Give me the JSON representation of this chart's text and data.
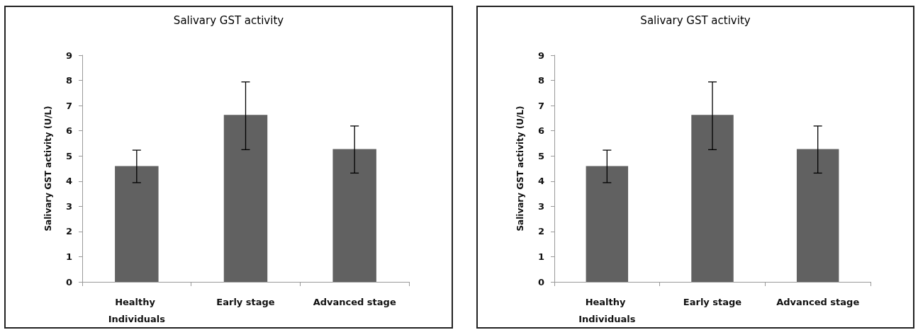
{
  "chart_data": [
    {
      "type": "bar",
      "title": "Salivary GST activity",
      "ylabel": "Salivary GST activity (U/L)",
      "categories": [
        "Healthy Individuals",
        "Early stage",
        "Advanced stage"
      ],
      "values": [
        4.6,
        6.63,
        5.27
      ],
      "color": "#616161",
      "errors": [
        [
          3.94,
          5.23
        ],
        [
          5.25,
          7.94
        ],
        [
          4.32,
          6.19
        ]
      ],
      "ylim": [
        0,
        9
      ],
      "yticks": [
        0,
        1,
        2,
        3,
        4,
        5,
        6,
        7,
        8,
        9
      ]
    },
    {
      "type": "bar",
      "title": "Salivary GST activity",
      "ylabel": "Salivary GST activity (U/L)",
      "categories": [
        "Healthy Individuals",
        "Early stage",
        "Advanced stage"
      ],
      "values": [
        4.6,
        6.63,
        5.27
      ],
      "color": "#616161",
      "errors": [
        [
          3.94,
          5.23
        ],
        [
          5.25,
          7.94
        ],
        [
          4.32,
          6.19
        ]
      ],
      "ylim": [
        0,
        9
      ],
      "yticks": [
        0,
        1,
        2,
        3,
        4,
        5,
        6,
        7,
        8,
        9
      ]
    }
  ]
}
